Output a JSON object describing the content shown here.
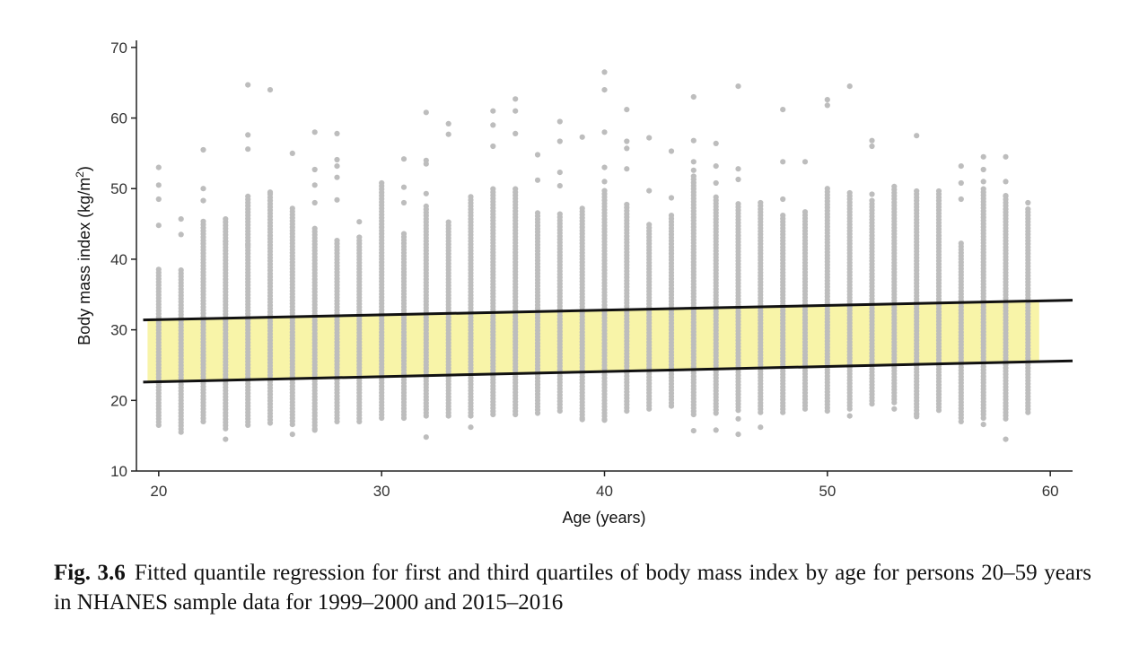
{
  "chart_data": {
    "type": "scatter",
    "xlabel": "Age (years)",
    "ylabel_main": "Body mass index (kg/m",
    "ylabel_sup": "2",
    "ylabel_close": ")",
    "xlim": [
      19,
      61
    ],
    "ylim": [
      10,
      71
    ],
    "xticks": [
      20,
      30,
      40,
      50,
      60
    ],
    "yticks": [
      10,
      20,
      30,
      40,
      50,
      60,
      70
    ],
    "grid": false,
    "point_color": "#bdbdbd",
    "band_color": "#f8f4a8",
    "line_color": "#111111",
    "ages": [
      20,
      21,
      22,
      23,
      24,
      25,
      26,
      27,
      28,
      29,
      30,
      31,
      32,
      33,
      34,
      35,
      36,
      37,
      38,
      39,
      40,
      41,
      42,
      43,
      44,
      45,
      46,
      47,
      48,
      49,
      50,
      51,
      52,
      53,
      54,
      55,
      56,
      57,
      58,
      59
    ],
    "column_ranges": [
      [
        16.5,
        38.8
      ],
      [
        15.5,
        38.5
      ],
      [
        17,
        45.7
      ],
      [
        16,
        46
      ],
      [
        16.5,
        49.3
      ],
      [
        16.8,
        49.3
      ],
      [
        16.6,
        47.5
      ],
      [
        16,
        44.5
      ],
      [
        17,
        43
      ],
      [
        17,
        43.5
      ],
      [
        17.5,
        51
      ],
      [
        17.5,
        43.8
      ],
      [
        17.8,
        47.7
      ],
      [
        17.8,
        45.5
      ],
      [
        17.8,
        49
      ],
      [
        18,
        50.3
      ],
      [
        18,
        50
      ],
      [
        18.2,
        46.8
      ],
      [
        18.5,
        46.5
      ],
      [
        17.5,
        47.3
      ],
      [
        17.3,
        49.7
      ],
      [
        18.5,
        48
      ],
      [
        18.8,
        45.2
      ],
      [
        19.2,
        46.5
      ],
      [
        18,
        52
      ],
      [
        18.2,
        49
      ],
      [
        18.6,
        48
      ],
      [
        18.3,
        48.3
      ],
      [
        18.3,
        46.2
      ],
      [
        18.8,
        47
      ],
      [
        18.5,
        50.3
      ],
      [
        18.8,
        49.7
      ],
      [
        19.5,
        48.7
      ],
      [
        19.7,
        50.5
      ],
      [
        17.7,
        49.8
      ],
      [
        18.6,
        49.8
      ],
      [
        17.5,
        42.5
      ],
      [
        18,
        50.3
      ],
      [
        17.4,
        49
      ],
      [
        18.3,
        47.5
      ]
    ],
    "outliers": [
      [
        20,
        53
      ],
      [
        20,
        50.5
      ],
      [
        20,
        48.5
      ],
      [
        20,
        44.8
      ],
      [
        21,
        45.7
      ],
      [
        21,
        43.5
      ],
      [
        22,
        55.5
      ],
      [
        22,
        50
      ],
      [
        22,
        48.3
      ],
      [
        23,
        14.5
      ],
      [
        23,
        42.5
      ],
      [
        24,
        64.7
      ],
      [
        24,
        57.6
      ],
      [
        24,
        55.6
      ],
      [
        24,
        42
      ],
      [
        25,
        64
      ],
      [
        25,
        49.5
      ],
      [
        26,
        55
      ],
      [
        26,
        15.2
      ],
      [
        27,
        58
      ],
      [
        27,
        52.7
      ],
      [
        27,
        50.5
      ],
      [
        27,
        48
      ],
      [
        27,
        15.8
      ],
      [
        28,
        57.8
      ],
      [
        28,
        54.1
      ],
      [
        28,
        53.2
      ],
      [
        28,
        51.6
      ],
      [
        28,
        48.4
      ],
      [
        29,
        45.3
      ],
      [
        31,
        54.2
      ],
      [
        31,
        50.2
      ],
      [
        31,
        48
      ],
      [
        32,
        60.8
      ],
      [
        32,
        54
      ],
      [
        32,
        53.5
      ],
      [
        32,
        49.3
      ],
      [
        32,
        14.8
      ],
      [
        33,
        59.2
      ],
      [
        33,
        57.7
      ],
      [
        34,
        16.2
      ],
      [
        35,
        61
      ],
      [
        35,
        59
      ],
      [
        35,
        56
      ],
      [
        36,
        62.7
      ],
      [
        36,
        61
      ],
      [
        36,
        57.8
      ],
      [
        37,
        54.8
      ],
      [
        37,
        51.2
      ],
      [
        38,
        59.5
      ],
      [
        38,
        56.7
      ],
      [
        38,
        52.3
      ],
      [
        38,
        50.4
      ],
      [
        39,
        57.3
      ],
      [
        39,
        17.3
      ],
      [
        40,
        66.5
      ],
      [
        40,
        64
      ],
      [
        40,
        58
      ],
      [
        40,
        53
      ],
      [
        40,
        51
      ],
      [
        40,
        17.2
      ],
      [
        41,
        61.2
      ],
      [
        41,
        56.7
      ],
      [
        41,
        55.7
      ],
      [
        41,
        52.8
      ],
      [
        42,
        57.2
      ],
      [
        42,
        49.7
      ],
      [
        43,
        55.3
      ],
      [
        43,
        48.7
      ],
      [
        44,
        63
      ],
      [
        44,
        56.8
      ],
      [
        44,
        53.8
      ],
      [
        44,
        52.6
      ],
      [
        44,
        15.7
      ],
      [
        45,
        56.4
      ],
      [
        45,
        53.2
      ],
      [
        45,
        50.8
      ],
      [
        45,
        15.8
      ],
      [
        46,
        64.5
      ],
      [
        46,
        52.8
      ],
      [
        46,
        51.3
      ],
      [
        46,
        15.2
      ],
      [
        46,
        17.4
      ],
      [
        47,
        16.2
      ],
      [
        48,
        61.2
      ],
      [
        48,
        53.8
      ],
      [
        48,
        48.5
      ],
      [
        49,
        53.8
      ],
      [
        50,
        62.6
      ],
      [
        50,
        61.8
      ],
      [
        51,
        64.5
      ],
      [
        51,
        17.8
      ],
      [
        52,
        56.8
      ],
      [
        52,
        56
      ],
      [
        52,
        49.2
      ],
      [
        53,
        18.8
      ],
      [
        54,
        57.5
      ],
      [
        54,
        18
      ],
      [
        56,
        53.2
      ],
      [
        56,
        50.8
      ],
      [
        56,
        48.5
      ],
      [
        56,
        17
      ],
      [
        57,
        54.5
      ],
      [
        57,
        52.7
      ],
      [
        57,
        51
      ],
      [
        57,
        17.5
      ],
      [
        57,
        16.6
      ],
      [
        58,
        54.5
      ],
      [
        58,
        51
      ],
      [
        58,
        49
      ],
      [
        58,
        14.5
      ],
      [
        59,
        48
      ]
    ],
    "quantile_lines": [
      {
        "quantile": 0.25,
        "x": [
          19.3,
          61
        ],
        "y": [
          22.6,
          25.6
        ]
      },
      {
        "quantile": 0.75,
        "x": [
          19.3,
          61
        ],
        "y": [
          31.4,
          34.2
        ]
      }
    ],
    "band_x": [
      19.5,
      59.5
    ]
  },
  "caption": {
    "label": "Fig. 3.6",
    "text": "Fitted quantile regression for first and third quartiles of body mass index by age for persons 20–59 years in NHANES sample data for 1999–2000 and 2015–2016"
  }
}
